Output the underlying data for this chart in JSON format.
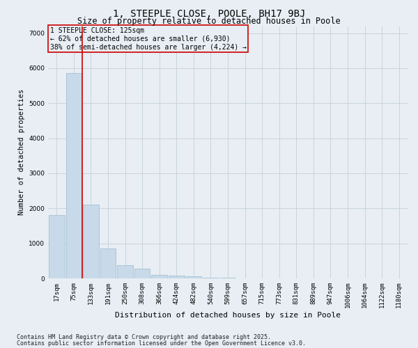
{
  "title": "1, STEEPLE CLOSE, POOLE, BH17 9BJ",
  "subtitle": "Size of property relative to detached houses in Poole",
  "xlabel": "Distribution of detached houses by size in Poole",
  "ylabel": "Number of detached properties",
  "categories": [
    "17sqm",
    "75sqm",
    "133sqm",
    "191sqm",
    "250sqm",
    "308sqm",
    "366sqm",
    "424sqm",
    "482sqm",
    "540sqm",
    "599sqm",
    "657sqm",
    "715sqm",
    "773sqm",
    "831sqm",
    "889sqm",
    "947sqm",
    "1006sqm",
    "1064sqm",
    "1122sqm",
    "1180sqm"
  ],
  "values": [
    1800,
    5850,
    2100,
    850,
    380,
    270,
    105,
    75,
    50,
    25,
    15,
    5,
    2,
    0,
    0,
    0,
    0,
    0,
    0,
    0,
    0
  ],
  "bar_color": "#c8daea",
  "bar_edge_color": "#9ab8cc",
  "vline_color": "#cc0000",
  "annotation_title": "1 STEEPLE CLOSE: 125sqm",
  "annotation_line1": "← 62% of detached houses are smaller (6,930)",
  "annotation_line2": "38% of semi-detached houses are larger (4,224) →",
  "annotation_box_edgecolor": "#cc0000",
  "ylim": [
    0,
    7200
  ],
  "yticks": [
    0,
    1000,
    2000,
    3000,
    4000,
    5000,
    6000,
    7000
  ],
  "footer_line1": "Contains HM Land Registry data © Crown copyright and database right 2025.",
  "footer_line2": "Contains public sector information licensed under the Open Government Licence v3.0.",
  "background_color": "#e8eef4",
  "grid_color": "#c8d4de",
  "title_fontsize": 10,
  "subtitle_fontsize": 8.5,
  "tick_fontsize": 6.5,
  "ylabel_fontsize": 7.5,
  "xlabel_fontsize": 8,
  "annotation_fontsize": 7,
  "footer_fontsize": 6
}
